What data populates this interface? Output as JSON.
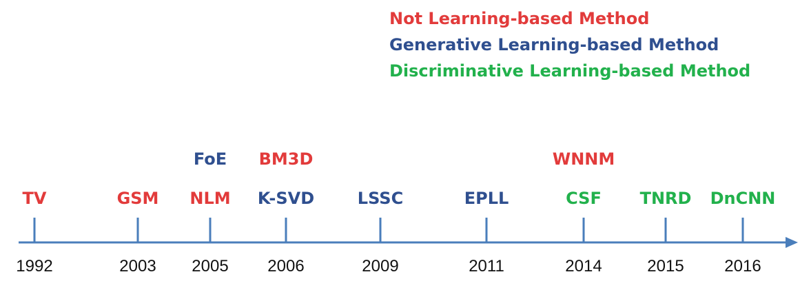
{
  "legend": [
    {
      "label": "Not Learning-based Method",
      "color": "#e23b3b"
    },
    {
      "label": "Generative Learning-based Method",
      "color": "#2f4f8f"
    },
    {
      "label": "Discriminative Learning-based Method",
      "color": "#22b14c"
    }
  ],
  "colors": {
    "axis": "#4a7ebb"
  },
  "events": [
    {
      "year": "1992",
      "methods": [
        {
          "name": "TV",
          "category": 0
        }
      ]
    },
    {
      "year": "2003",
      "methods": [
        {
          "name": "GSM",
          "category": 0
        }
      ]
    },
    {
      "year": "2005",
      "methods": [
        {
          "name": "NLM",
          "category": 0
        },
        {
          "name": "FoE",
          "category": 1
        }
      ]
    },
    {
      "year": "2006",
      "methods": [
        {
          "name": "K-SVD",
          "category": 1
        },
        {
          "name": "BM3D",
          "category": 0
        }
      ]
    },
    {
      "year": "2009",
      "methods": [
        {
          "name": "LSSC",
          "category": 1
        }
      ]
    },
    {
      "year": "2011",
      "methods": [
        {
          "name": "EPLL",
          "category": 1
        }
      ]
    },
    {
      "year": "2014",
      "methods": [
        {
          "name": "CSF",
          "category": 2
        },
        {
          "name": "WNNM",
          "category": 0
        }
      ]
    },
    {
      "year": "2015",
      "methods": [
        {
          "name": "TNRD",
          "category": 2
        }
      ]
    },
    {
      "year": "2016",
      "methods": [
        {
          "name": "DnCNN",
          "category": 2
        }
      ]
    }
  ]
}
